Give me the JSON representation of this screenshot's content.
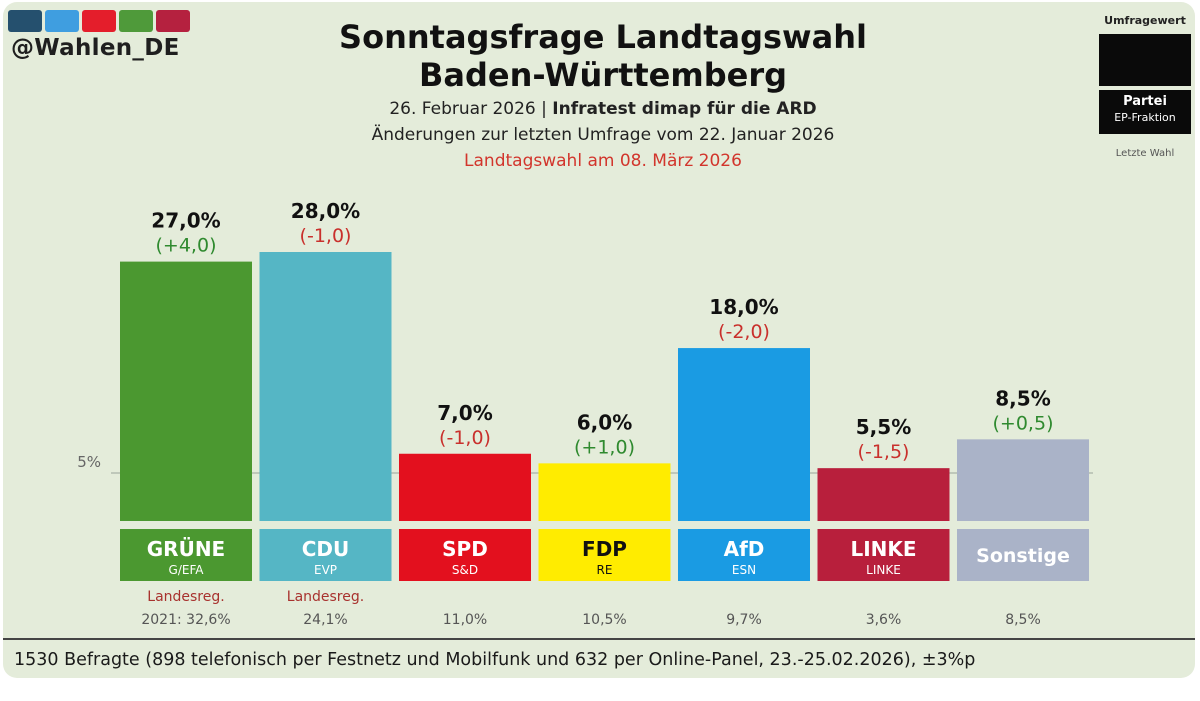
{
  "handle": "@Wahlen_DE",
  "stripe_colors": [
    "#25506e",
    "#3f9ee0",
    "#e41e2b",
    "#4f9a3a",
    "#b5213f"
  ],
  "title_line1": "Sonntagsfrage Landtagswahl",
  "title_line2": "Baden-Württemberg",
  "subtitle_date": "26. Februar 2026",
  "subtitle_sep": " | ",
  "subtitle_institute": "Infratest dimap für die ARD",
  "changes_text": "Änderungen zur letzten Umfrage vom 22. Januar 2026",
  "election_text": "Landtagswahl am 08. März 2026",
  "legend": {
    "label": "Umfragewert",
    "party": "Partei",
    "fraktion": "EP-Fraktion",
    "last": "Letzte Wahl"
  },
  "footer": "1530 Befragte (898 telefonisch per Festnetz und Mobilfunk und 632 per Online-Panel, 23.-25.02.2026), ±3%p",
  "chart_data": {
    "type": "bar",
    "title": "Sonntagsfrage Landtagswahl Baden-Württemberg",
    "ylim": [
      0,
      28
    ],
    "threshold": {
      "value": 5,
      "label": "5%"
    },
    "categories": [
      "GRÜNE",
      "CDU",
      "SPD",
      "FDP",
      "AfD",
      "LINKE",
      "Sonstige"
    ],
    "bars": [
      {
        "party": "GRÜNE",
        "fraktion": "G/EFA",
        "value": 27.0,
        "label": "27,0%",
        "change": "(+4,0)",
        "change_dir": "up",
        "color": "#4b9830",
        "gov": "Landesreg.",
        "last": "2021: 32,6%"
      },
      {
        "party": "CDU",
        "fraktion": "EVP",
        "value": 28.0,
        "label": "28,0%",
        "change": "(-1,0)",
        "change_dir": "down",
        "color": "#55b6c5",
        "gov": "Landesreg.",
        "last": "24,1%"
      },
      {
        "party": "SPD",
        "fraktion": "S&D",
        "value": 7.0,
        "label": "7,0%",
        "change": "(-1,0)",
        "change_dir": "down",
        "color": "#e3101e",
        "gov": "",
        "last": "11,0%"
      },
      {
        "party": "FDP",
        "fraktion": "RE",
        "value": 6.0,
        "label": "6,0%",
        "change": "(+1,0)",
        "change_dir": "up",
        "color": "#ffec00",
        "gov": "",
        "last": "10,5%"
      },
      {
        "party": "AfD",
        "fraktion": "ESN",
        "value": 18.0,
        "label": "18,0%",
        "change": "(-2,0)",
        "change_dir": "down",
        "color": "#1a9be3",
        "gov": "",
        "last": "9,7%"
      },
      {
        "party": "LINKE",
        "fraktion": "LINKE",
        "value": 5.5,
        "label": "5,5%",
        "change": "(-1,5)",
        "change_dir": "down",
        "color": "#b81f3c",
        "gov": "",
        "last": "3,6%"
      },
      {
        "party": "Sonstige",
        "fraktion": "",
        "value": 8.5,
        "label": "8,5%",
        "change": "(+0,5)",
        "change_dir": "up",
        "color": "#aab3c8",
        "gov": "",
        "last": "8,5%"
      }
    ]
  }
}
